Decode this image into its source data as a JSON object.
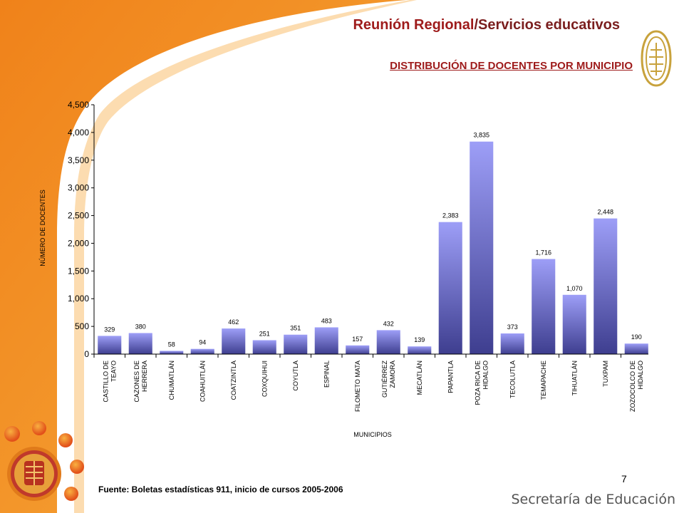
{
  "header": {
    "title_main": "Reunión Regional",
    "title_sep": "/",
    "title_sub": "Servicios educativos",
    "chart_heading": "DISTRIBUCIÓN DE DOCENTES POR MUNICIPIO"
  },
  "footer": {
    "source": "Fuente: Boletas estadísticas 911, inicio de cursos 2005-2006",
    "page_number": "7",
    "org_name": "Secretaría de Educación"
  },
  "colors": {
    "brand_orange": "#f39a1f",
    "title_red": "#9e1b1b",
    "bar_top": "#9d9ef7",
    "bar_bottom": "#3e3e8f"
  },
  "icons": [
    "emblem-icon",
    "state-seal-icon"
  ],
  "chart_data": {
    "type": "bar",
    "title": "",
    "xlabel": "MUNICIPIOS",
    "ylabel": "NÚMERO DE DOCENTES",
    "ylim": [
      0,
      4500
    ],
    "yticks": [
      "0",
      "500",
      "1,000",
      "1,500",
      "2,000",
      "2,500",
      "3,000",
      "3,500",
      "4,000",
      "4,500"
    ],
    "grid": false,
    "categories": [
      [
        "CASTILLO DE",
        "TEAYO"
      ],
      [
        "CAZONES DE",
        "HERRERA"
      ],
      [
        "CHUMATLÁN"
      ],
      [
        "COAHUITLÁN"
      ],
      [
        "COATZINTLA"
      ],
      [
        "COXQUIHUI"
      ],
      [
        "COYUTLA"
      ],
      [
        "ESPINAL"
      ],
      [
        "FILOMETO MATA"
      ],
      [
        "GUTIÉRREZ",
        "ZAMORA"
      ],
      [
        "MECATLÁN"
      ],
      [
        "PAPANTLA"
      ],
      [
        "POZA RICA DE",
        "HIDALGO"
      ],
      [
        "TECOLUTLA"
      ],
      [
        "TEMAPACHE"
      ],
      [
        "TIHUATLÁN"
      ],
      [
        "TUXPAM"
      ],
      [
        "ZOZOCOLCO DE",
        "HIDALGO"
      ]
    ],
    "values": [
      329,
      380,
      58,
      94,
      462,
      251,
      351,
      483,
      157,
      432,
      139,
      2383,
      3835,
      373,
      1716,
      1070,
      2448,
      190
    ],
    "value_labels": [
      "329",
      "380",
      "58",
      "94",
      "462",
      "251",
      "351",
      "483",
      "157",
      "432",
      "139",
      "2,383",
      "3,835",
      "373",
      "1,716",
      "1,070",
      "2,448",
      "190"
    ]
  }
}
